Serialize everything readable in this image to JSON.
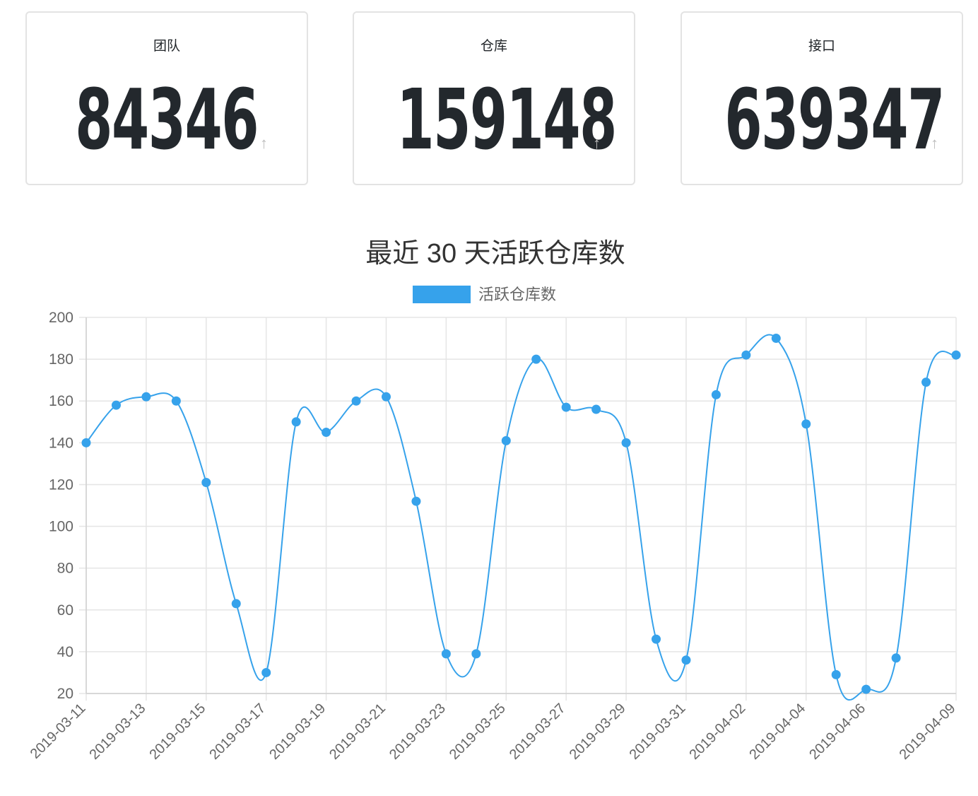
{
  "stats": [
    {
      "label": "团队",
      "value": "84346",
      "trend_icon": "up-arrow-icon",
      "trend_glyph": "↑"
    },
    {
      "label": "仓库",
      "value": "159148",
      "trend_icon": "up-arrow-icon",
      "trend_glyph": "↑"
    },
    {
      "label": "接口",
      "value": "639347",
      "trend_icon": "up-arrow-icon",
      "trend_glyph": "↑"
    }
  ],
  "colors": {
    "line": "#36a2eb",
    "grid": "#e5e5e5",
    "axis_text": "#666666",
    "title": "#333333",
    "card_border": "#e3e3e3"
  },
  "chart_data": {
    "type": "line",
    "title": "最近 30 天活跃仓库数",
    "legend": "活跃仓库数",
    "legend_position": "top-center",
    "xlabel": "",
    "ylabel": "",
    "ylim": [
      20,
      200
    ],
    "ytick_step": 20,
    "grid": true,
    "x": [
      "2019-03-11",
      "2019-03-12",
      "2019-03-13",
      "2019-03-14",
      "2019-03-15",
      "2019-03-16",
      "2019-03-17",
      "2019-03-18",
      "2019-03-19",
      "2019-03-20",
      "2019-03-21",
      "2019-03-22",
      "2019-03-23",
      "2019-03-24",
      "2019-03-25",
      "2019-03-26",
      "2019-03-27",
      "2019-03-28",
      "2019-03-29",
      "2019-03-30",
      "2019-03-31",
      "2019-04-01",
      "2019-04-02",
      "2019-04-03",
      "2019-04-04",
      "2019-04-05",
      "2019-04-06",
      "2019-04-07",
      "2019-04-08",
      "2019-04-09"
    ],
    "xtick_labels": [
      "2019-03-11",
      "2019-03-13",
      "2019-03-15",
      "2019-03-17",
      "2019-03-19",
      "2019-03-21",
      "2019-03-23",
      "2019-03-25",
      "2019-03-27",
      "2019-03-29",
      "2019-03-31",
      "2019-04-02",
      "2019-04-04",
      "2019-04-06",
      "2019-04-09"
    ],
    "series": [
      {
        "name": "活跃仓库数",
        "values": [
          140,
          158,
          162,
          160,
          121,
          63,
          30,
          150,
          145,
          160,
          162,
          112,
          39,
          39,
          141,
          180,
          157,
          156,
          140,
          46,
          36,
          163,
          182,
          190,
          149,
          29,
          22,
          37,
          169,
          182
        ]
      }
    ]
  }
}
